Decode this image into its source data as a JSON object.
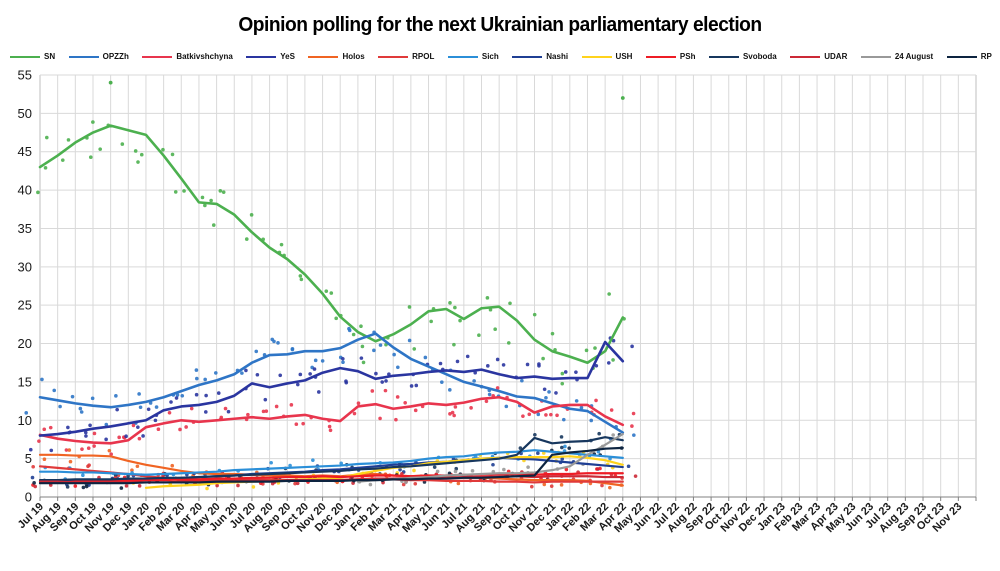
{
  "title": "Opinion polling for the next Ukrainian parliamentary election",
  "axes": {
    "y_ticks": [
      0,
      5,
      10,
      15,
      20,
      25,
      30,
      35,
      40,
      45,
      50,
      55
    ],
    "ylim": [
      0,
      55
    ],
    "grid": true,
    "legend_position": "top"
  },
  "chart_data": {
    "type": "line",
    "title": "Opinion polling for the next Ukrainian parliamentary election",
    "xlabel": "",
    "ylabel": "",
    "ylim": [
      0,
      55
    ],
    "x_labels": [
      "Jul 19",
      "Aug 19",
      "Sep 19",
      "Oct 19",
      "Nov 19",
      "Dec 19",
      "Jan 20",
      "Feb 20",
      "Mar 20",
      "Apr 20",
      "May 20",
      "Jun 20",
      "Jul 20",
      "Aug 20",
      "Sep 20",
      "Oct 20",
      "Nov 20",
      "Dec 20",
      "Jan 21",
      "Feb 21",
      "Mar 21",
      "Apr 21",
      "May 21",
      "Jun 21",
      "Jul 21",
      "Aug 21",
      "Sep 21",
      "Oct 21",
      "Nov 21",
      "Dec 21",
      "Jan 22",
      "Feb 22",
      "Mar 22",
      "Apr 22",
      "May 22",
      "Jun 22",
      "Jul 22",
      "Aug 22",
      "Sep 22",
      "Oct 22",
      "Nov 22",
      "Dec 22",
      "Jan 23",
      "Feb 23",
      "Mar 23",
      "Apr 23",
      "May 23",
      "Jun 23",
      "Jul 23",
      "Aug 23",
      "Sep 23",
      "Oct 23",
      "Nov 23"
    ],
    "series": [
      {
        "name": "SN",
        "color": "#4cb04f",
        "width": 2.6,
        "dots": 2,
        "spread": 3.6,
        "values": [
          43,
          44.5,
          46.2,
          47.5,
          48.4,
          47.8,
          47.2,
          44.5,
          41.5,
          38.4,
          38.2,
          36.8,
          34.5,
          32.5,
          31,
          29,
          26.5,
          23.5,
          21.5,
          20.3,
          21.2,
          22.5,
          24.2,
          24.5,
          23.2,
          24.6,
          24.8,
          23,
          20.5,
          19,
          18.3,
          17.5,
          19,
          23.4
        ]
      },
      {
        "name": "OPZZh",
        "color": "#2e75c6",
        "width": 2.6,
        "dots": 2,
        "spread": 2.4,
        "values": [
          13,
          12.6,
          12.2,
          11.9,
          11.7,
          12,
          12.4,
          13,
          13.8,
          14.6,
          15.2,
          16,
          17.5,
          18.5,
          18.6,
          19,
          19,
          19.4,
          20.5,
          21.3,
          19.5,
          18,
          17,
          16,
          15,
          14.4,
          13.8,
          13.1,
          12.9,
          12.2,
          11.5,
          11.2,
          9.8,
          8.4
        ]
      },
      {
        "name": "Batkivshchyna",
        "color": "#e8354d",
        "width": 2.6,
        "dots": 2,
        "spread": 1.8,
        "values": [
          8.1,
          7.6,
          7.3,
          7.1,
          7,
          7.4,
          9.1,
          9.6,
          10,
          9.8,
          10,
          10.2,
          10.4,
          10.2,
          10.5,
          10.7,
          10.2,
          9.9,
          11.8,
          12.1,
          11.5,
          11.8,
          12.2,
          12,
          12.3,
          12.8,
          13,
          12.4,
          11,
          11.8,
          12,
          12,
          10.5,
          9.4
        ]
      },
      {
        "name": "YeS",
        "color": "#2a35a0",
        "width": 2.6,
        "dots": 2,
        "spread": 2.2,
        "values": [
          8,
          8.2,
          8.5,
          8.9,
          9.2,
          9.6,
          10,
          11.3,
          11.8,
          12,
          12.4,
          13.2,
          14.8,
          14.3,
          14.8,
          15.2,
          16.2,
          16.8,
          16.4,
          15.4,
          15.8,
          16,
          16.3,
          16.5,
          16.3,
          16.6,
          16,
          15.5,
          15.7,
          15.4,
          15.5,
          15.5,
          20.2,
          17.7
        ]
      },
      {
        "name": "Holos",
        "color": "#f06423",
        "width": 2.2,
        "dots": 1,
        "spread": 0.8,
        "values": [
          5.5,
          5.5,
          5.4,
          5.4,
          5.3,
          4.7,
          4.2,
          3.8,
          3.4,
          3.1,
          3,
          3,
          2.9,
          2.8,
          2.8,
          2.7,
          2.8,
          2.7,
          2.9,
          3,
          2.8,
          2.7,
          2.8,
          2.6,
          2.5,
          2.5,
          2.4,
          2.3,
          2.2,
          2.2,
          2.2,
          2.1,
          1.8,
          1.5
        ]
      },
      {
        "name": "RPOL",
        "color": "#e03a3a",
        "width": 2.2,
        "dots": 1,
        "spread": 0.7,
        "values": [
          4,
          3.8,
          3.6,
          3.4,
          3.2,
          3,
          2.7,
          2.5,
          2.4,
          2.3,
          2.3,
          2.3,
          2.3,
          2.2,
          2.2,
          2.2,
          2.3,
          2.2,
          2.3,
          2.4,
          2.3,
          2.2,
          2.2,
          2.1,
          2.1,
          2.1,
          2,
          2,
          1.9,
          2,
          2,
          2,
          2,
          2
        ]
      },
      {
        "name": "Sich",
        "color": "#2b8fd8",
        "width": 2.2,
        "dots": 1,
        "spread": 1.0,
        "values": [
          3.3,
          3.3,
          3.2,
          3.2,
          3.1,
          3,
          2.9,
          3,
          3.1,
          3.2,
          3.3,
          3.5,
          3.6,
          3.7,
          3.8,
          3.9,
          4,
          4.1,
          4.3,
          4.4,
          4.5,
          4.7,
          5,
          5.2,
          5.3,
          5.6,
          5.8,
          5.9,
          6.1,
          5.9,
          5.7,
          5.5,
          5.3,
          5.1
        ]
      },
      {
        "name": "Nashi",
        "color": "#1f3f94",
        "width": 2.2,
        "dots": 1,
        "spread": 1.0,
        "values": [
          2,
          2,
          2.1,
          2.1,
          2.2,
          2.2,
          2.3,
          2.4,
          2.5,
          2.6,
          2.7,
          2.8,
          3,
          3.1,
          3.2,
          3.3,
          3.5,
          3.6,
          3.8,
          4,
          4.2,
          4.3,
          4.5,
          4.6,
          4.8,
          5,
          5.1,
          5,
          4.9,
          4.7,
          4.5,
          4.3,
          4.1,
          3.9
        ]
      },
      {
        "name": "USH",
        "color": "#ffd31c",
        "width": 2.2,
        "dots": 1,
        "spread": 0.8,
        "values": [
          null,
          null,
          null,
          null,
          null,
          null,
          1.2,
          1.4,
          1.5,
          1.6,
          1.8,
          1.9,
          2,
          2.1,
          2.2,
          2.3,
          2.4,
          2.5,
          3,
          3.4,
          3.8,
          4,
          4.4,
          4.6,
          4.8,
          5,
          5.1,
          5.2,
          5.2,
          5.2,
          5.3,
          5.1,
          4.8,
          4.2
        ]
      },
      {
        "name": "PSh",
        "color": "#ee1c25",
        "width": 2.2,
        "dots": 1,
        "spread": 0.7,
        "values": [
          1.9,
          1.9,
          2,
          2,
          2.1,
          2.1,
          2.2,
          2.2,
          2.3,
          2.3,
          2.4,
          2.4,
          2.5,
          2.5,
          2.6,
          2.6,
          2.7,
          2.6,
          2.7,
          2.8,
          2.8,
          2.7,
          2.8,
          2.8,
          2.9,
          2.9,
          3,
          3,
          2.9,
          3,
          3,
          3.1,
          3.1,
          3.1
        ]
      },
      {
        "name": "Svoboda",
        "color": "#17375e",
        "width": 2.2,
        "dots": 1,
        "spread": 1.0,
        "values": [
          2.2,
          2.2,
          2.3,
          2.3,
          2.3,
          2.4,
          2.4,
          2.5,
          2.5,
          2.6,
          2.7,
          2.8,
          2.9,
          3,
          3.1,
          3.2,
          3.3,
          3.4,
          3.6,
          3.7,
          3.9,
          4,
          4.2,
          4.4,
          4.6,
          4.8,
          5,
          5.5,
          7.7,
          7,
          7.2,
          7.3,
          7.8,
          7.4
        ]
      },
      {
        "name": "UDAR",
        "color": "#cc2936",
        "width": 2.2,
        "dots": 1,
        "spread": 0.7,
        "values": [
          2,
          2,
          1.9,
          1.9,
          1.9,
          1.9,
          1.9,
          1.9,
          2,
          2,
          2,
          2.1,
          2.1,
          2.1,
          2.2,
          2.2,
          2.2,
          2.2,
          2.3,
          2.4,
          2.4,
          2.5,
          2.5,
          2.5,
          2.6,
          2.6,
          2.7,
          2.7,
          2.6,
          2.7,
          2.7,
          2.7,
          2.6,
          2.6
        ]
      },
      {
        "name": "24 August",
        "color": "#999999",
        "width": 2.2,
        "dots": 1,
        "spread": 0.8,
        "values": [
          null,
          null,
          null,
          null,
          null,
          null,
          null,
          null,
          null,
          null,
          null,
          null,
          null,
          null,
          null,
          null,
          null,
          null,
          2,
          2.2,
          2.3,
          2.5,
          2.6,
          2.8,
          2.9,
          3,
          3.1,
          3.1,
          3.2,
          3.5,
          4,
          5.5,
          6.8,
          8.2
        ]
      },
      {
        "name": "RP",
        "color": "#0d2440",
        "width": 2.2,
        "dots": 1,
        "spread": 0.7,
        "values": [
          1.8,
          1.8,
          1.8,
          1.8,
          1.8,
          1.8,
          1.9,
          1.9,
          1.9,
          1.9,
          2,
          2,
          2,
          2,
          2.1,
          2.1,
          2.1,
          2.1,
          2.2,
          2.2,
          2.3,
          2.3,
          2.4,
          2.4,
          2.5,
          2.5,
          2.6,
          2.7,
          2.8,
          5.5,
          5.8,
          6,
          6.3,
          6.4
        ]
      }
    ],
    "extra_scatter": [
      {
        "series": "SN",
        "x_label": "Nov 19",
        "value": 54
      },
      {
        "series": "SN",
        "x_label": "Apr 22",
        "value": 52
      }
    ]
  }
}
